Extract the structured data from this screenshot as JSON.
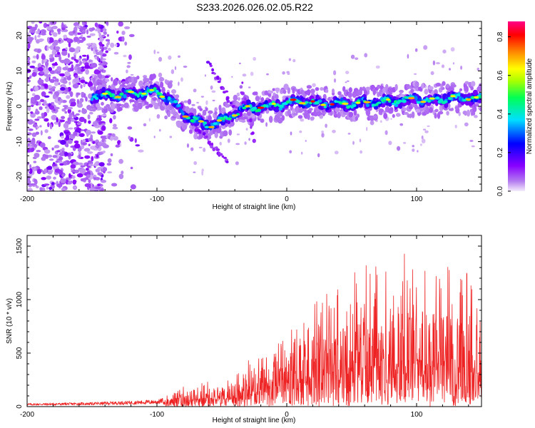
{
  "title": "S233.2026.026.02.05.R22",
  "chart_data": [
    {
      "type": "heatmap",
      "xlabel": "Height of straight line (km)",
      "ylabel": "Frequency (Hz)",
      "xlim": [
        -200,
        150
      ],
      "ylim": [
        -24,
        24
      ],
      "xticks": [
        "-200",
        "-100",
        "0",
        "100"
      ],
      "yticks": [
        "20",
        "10",
        "0",
        "-10",
        "-20"
      ],
      "colorbar": {
        "label": "Normalized spectral amplitude",
        "range": [
          0.0,
          0.88
        ],
        "ticks": [
          "0.0",
          "0.2",
          "0.4",
          "0.6",
          "0.8"
        ],
        "colors": [
          "#f0e6fa",
          "#8800ff",
          "#0000ff",
          "#00e0ff",
          "#00ff00",
          "#ffff00",
          "#ff8800",
          "#ff0000",
          "#ff0088"
        ]
      },
      "ridge": {
        "x": [
          -150,
          -140,
          -130,
          -120,
          -110,
          -100,
          -95,
          -90,
          -85,
          -80,
          -75,
          -70,
          -65,
          -60,
          -55,
          -50,
          -45,
          -40,
          -35,
          -30,
          -25,
          -20,
          -15,
          -10,
          -5,
          0,
          10,
          20,
          30,
          40,
          50,
          60,
          70,
          80,
          90,
          100,
          110,
          120,
          130,
          140,
          148
        ],
        "f": [
          3,
          3,
          3.2,
          3.5,
          4,
          4,
          3,
          2,
          0,
          -2,
          -3,
          -4,
          -5,
          -5.5,
          -5,
          -4,
          -3.5,
          -2,
          -1,
          -0.5,
          -0.5,
          0,
          0,
          0.5,
          0.5,
          1,
          1.5,
          1,
          0.5,
          1,
          0.5,
          1,
          1,
          1.5,
          1.5,
          2,
          1.5,
          2,
          2.5,
          2.5,
          2
        ]
      }
    },
    {
      "type": "line",
      "series_name": "SNR",
      "color": "#ee2222",
      "xlabel": "Height of straight line (km)",
      "ylabel": "SNR (10 * v/v)",
      "xlim": [
        -200,
        150
      ],
      "ylim": [
        0,
        1600
      ],
      "xticks": [
        "-200",
        "-100",
        "0",
        "100"
      ],
      "yticks": [
        "1500",
        "1000",
        "500",
        "0"
      ],
      "envelope": {
        "x": [
          -200,
          -150,
          -120,
          -100,
          -90,
          -80,
          -70,
          -60,
          -50,
          -40,
          -30,
          -20,
          -10,
          0,
          10,
          20,
          30,
          40,
          50,
          60,
          70,
          80,
          90,
          100,
          110,
          120,
          130,
          140,
          150
        ],
        "y": [
          30,
          40,
          55,
          65,
          100,
          170,
          220,
          230,
          220,
          260,
          380,
          450,
          520,
          650,
          800,
          850,
          950,
          1000,
          1100,
          1150,
          1150,
          1200,
          1250,
          1300,
          1150,
          1200,
          1050,
          1100,
          900
        ]
      }
    }
  ]
}
